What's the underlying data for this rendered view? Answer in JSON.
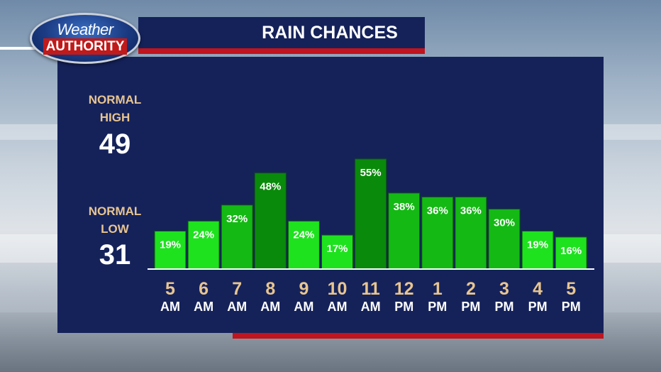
{
  "logo": {
    "line1": "Weather",
    "line2": "AUTHORITY"
  },
  "normal_high": {
    "label_line1": "NORMAL",
    "label_line2": "HIGH",
    "value": "49"
  },
  "normal_low": {
    "label_line1": "NORMAL",
    "label_line2": "LOW",
    "value": "31"
  },
  "chart_data": {
    "type": "bar",
    "title": "RAIN CHANCES",
    "categories": [
      "5 AM",
      "6 AM",
      "7 AM",
      "8 AM",
      "9 AM",
      "10 AM",
      "11 AM",
      "12 PM",
      "1 PM",
      "2 PM",
      "3 PM",
      "4 PM",
      "5 PM"
    ],
    "tick_top": [
      "5",
      "6",
      "7",
      "8",
      "9",
      "10",
      "11",
      "12",
      "1",
      "2",
      "3",
      "4",
      "5"
    ],
    "tick_bottom": [
      "AM",
      "AM",
      "AM",
      "AM",
      "AM",
      "AM",
      "AM",
      "PM",
      "PM",
      "PM",
      "PM",
      "PM",
      "PM"
    ],
    "values": [
      19,
      24,
      32,
      48,
      24,
      17,
      55,
      38,
      36,
      36,
      30,
      19,
      16
    ],
    "value_labels": [
      "19%",
      "24%",
      "32%",
      "48%",
      "24%",
      "17%",
      "55%",
      "38%",
      "36%",
      "36%",
      "30%",
      "19%",
      "16%"
    ],
    "ylim": [
      0,
      100
    ],
    "grid": false,
    "colors": {
      "panel": "#15225a",
      "accent_red": "#c0141e",
      "label_tan": "#e8c590",
      "bar_light": "#1ee21e",
      "bar_mid": "#14b914",
      "bar_dark": "#0a8a0a"
    }
  }
}
